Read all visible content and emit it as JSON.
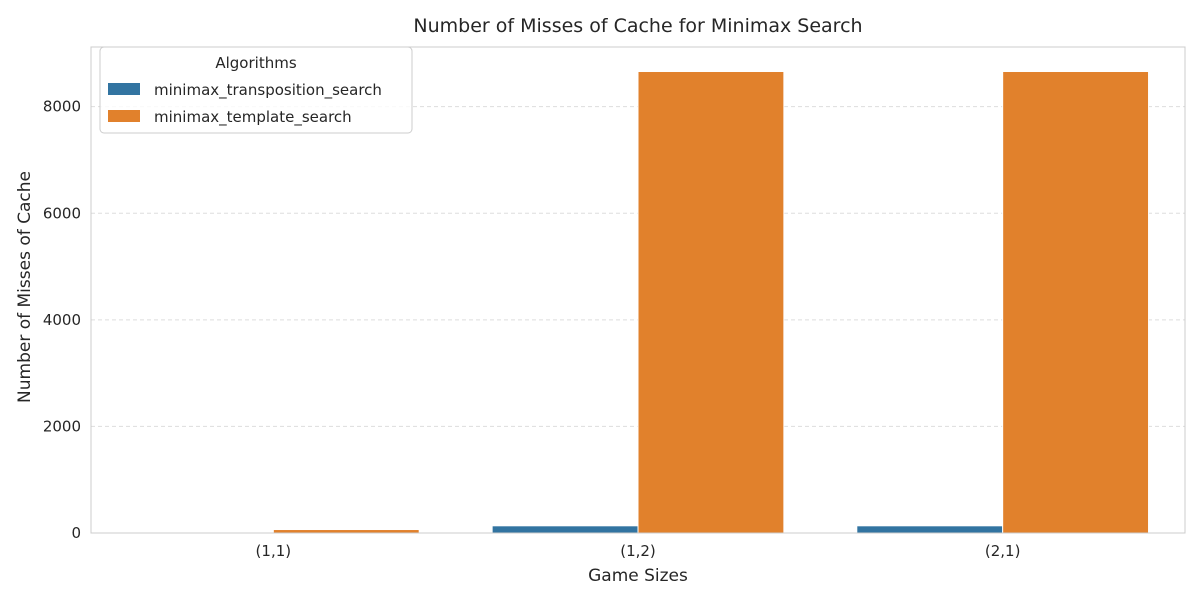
{
  "chart_data": {
    "type": "bar",
    "title": "Number of Misses of Cache for Minimax Search",
    "xlabel": "Game Sizes",
    "ylabel": "Number of Misses of Cache",
    "categories": [
      "(1,1)",
      "(1,2)",
      "(2,1)"
    ],
    "series": [
      {
        "name": "minimax_transposition_search",
        "color": "#3274a1",
        "values": [
          4,
          135,
          135
        ]
      },
      {
        "name": "minimax_template_search",
        "color": "#e1812c",
        "values": [
          65,
          8660,
          8660
        ]
      }
    ],
    "ylim": [
      0,
      9120
    ],
    "yticks": [
      0,
      2000,
      4000,
      6000,
      8000
    ],
    "grid": true,
    "legend": {
      "title": "Algorithms",
      "placement": "top-left"
    }
  }
}
